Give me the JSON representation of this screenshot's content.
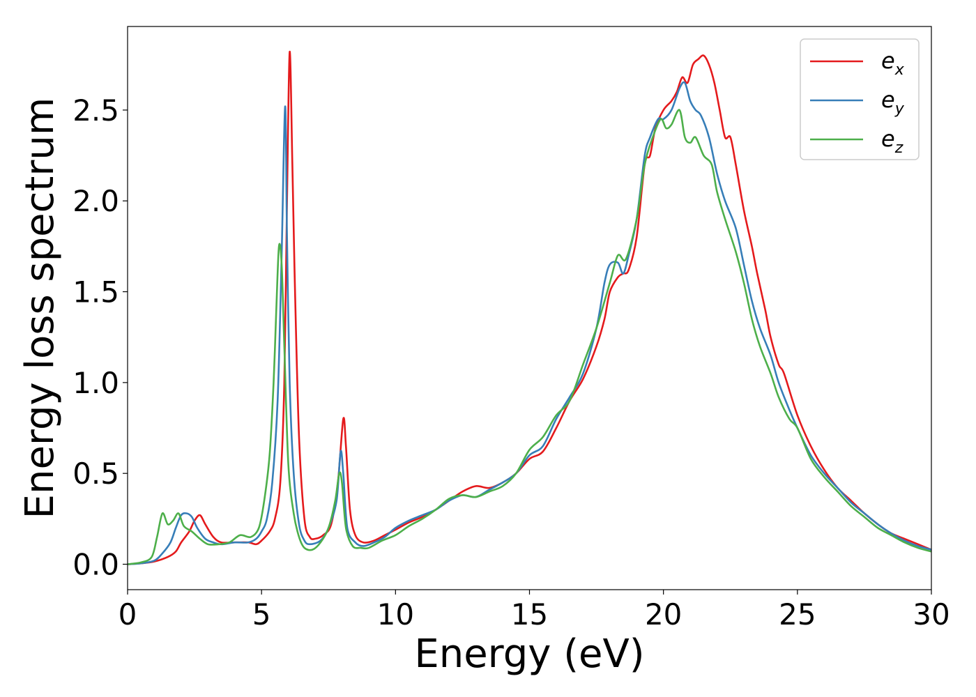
{
  "chart_data": {
    "type": "line",
    "title": "",
    "xlabel": "Energy (eV)",
    "ylabel": "Energy loss spectrum",
    "xlim": [
      0,
      30
    ],
    "ylim": [
      -0.14,
      2.96
    ],
    "xticks": [
      0,
      5,
      10,
      15,
      20,
      25,
      30
    ],
    "yticks": [
      0.0,
      0.5,
      1.0,
      1.5,
      2.0,
      2.5
    ],
    "xtick_labels": [
      "0",
      "5",
      "10",
      "15",
      "20",
      "25",
      "30"
    ],
    "ytick_labels": [
      "0.0",
      "0.5",
      "1.0",
      "1.5",
      "2.0",
      "2.5"
    ],
    "grid": false,
    "legend_position": "top-right",
    "series": [
      {
        "name": "e_x",
        "legend_base": "e",
        "legend_sub": "x",
        "color": "#e41a1c",
        "x": [
          0,
          0.5,
          1.0,
          1.5,
          1.8,
          2.0,
          2.3,
          2.5,
          2.7,
          2.9,
          3.2,
          3.5,
          4.0,
          4.5,
          4.8,
          5.0,
          5.3,
          5.5,
          5.7,
          5.85,
          5.95,
          6.05,
          6.15,
          6.25,
          6.4,
          6.6,
          6.8,
          7.0,
          7.3,
          7.6,
          7.85,
          8.05,
          8.15,
          8.3,
          8.5,
          8.8,
          9.2,
          9.6,
          10.0,
          10.5,
          11.0,
          11.5,
          12.0,
          12.5,
          13.0,
          13.5,
          14.0,
          14.5,
          15.0,
          15.5,
          16.0,
          16.5,
          17.0,
          17.5,
          17.8,
          18.0,
          18.3,
          18.5,
          18.7,
          19.0,
          19.3,
          19.5,
          19.7,
          20.0,
          20.3,
          20.5,
          20.7,
          20.9,
          21.1,
          21.3,
          21.5,
          21.7,
          21.9,
          22.1,
          22.3,
          22.5,
          22.7,
          23.0,
          23.3,
          23.5,
          23.8,
          24.0,
          24.3,
          24.5,
          25.0,
          25.5,
          26.0,
          26.5,
          27.0,
          27.5,
          28.0,
          28.5,
          29.0,
          29.5,
          30.0
        ],
        "values": [
          0.0,
          0.005,
          0.015,
          0.04,
          0.07,
          0.12,
          0.18,
          0.24,
          0.27,
          0.22,
          0.15,
          0.12,
          0.12,
          0.12,
          0.11,
          0.13,
          0.18,
          0.25,
          0.45,
          1.0,
          2.0,
          2.82,
          2.2,
          1.5,
          0.7,
          0.25,
          0.15,
          0.14,
          0.16,
          0.22,
          0.45,
          0.8,
          0.65,
          0.3,
          0.16,
          0.12,
          0.13,
          0.16,
          0.19,
          0.23,
          0.26,
          0.3,
          0.35,
          0.4,
          0.43,
          0.42,
          0.45,
          0.5,
          0.58,
          0.62,
          0.75,
          0.9,
          1.02,
          1.2,
          1.35,
          1.5,
          1.58,
          1.6,
          1.62,
          1.8,
          2.2,
          2.25,
          2.4,
          2.5,
          2.55,
          2.6,
          2.68,
          2.65,
          2.75,
          2.78,
          2.8,
          2.75,
          2.65,
          2.5,
          2.35,
          2.35,
          2.2,
          1.95,
          1.75,
          1.6,
          1.4,
          1.25,
          1.1,
          1.05,
          0.82,
          0.65,
          0.52,
          0.42,
          0.35,
          0.28,
          0.22,
          0.17,
          0.14,
          0.11,
          0.08
        ]
      },
      {
        "name": "e_y",
        "legend_base": "e",
        "legend_sub": "y",
        "color": "#377eb8",
        "x": [
          0,
          0.5,
          1.0,
          1.3,
          1.6,
          1.8,
          2.0,
          2.2,
          2.4,
          2.6,
          2.9,
          3.2,
          3.5,
          4.0,
          4.5,
          4.8,
          5.0,
          5.2,
          5.4,
          5.6,
          5.75,
          5.88,
          5.95,
          6.05,
          6.2,
          6.4,
          6.6,
          6.8,
          7.2,
          7.5,
          7.8,
          7.95,
          8.05,
          8.2,
          8.5,
          8.8,
          9.2,
          9.6,
          10.0,
          10.5,
          11.0,
          11.5,
          12.0,
          12.5,
          13.0,
          13.5,
          14.0,
          14.5,
          15.0,
          15.5,
          16.0,
          16.5,
          17.0,
          17.5,
          17.8,
          18.0,
          18.3,
          18.5,
          18.7,
          19.0,
          19.3,
          19.5,
          19.8,
          20.0,
          20.3,
          20.6,
          20.8,
          21.0,
          21.2,
          21.4,
          21.7,
          22.0,
          22.3,
          22.7,
          23.0,
          23.3,
          23.6,
          24.0,
          24.3,
          24.7,
          25.0,
          25.5,
          26.0,
          26.5,
          27.0,
          27.5,
          28.0,
          28.5,
          29.0,
          29.5,
          30.0
        ],
        "values": [
          0.0,
          0.005,
          0.02,
          0.06,
          0.12,
          0.2,
          0.27,
          0.28,
          0.26,
          0.2,
          0.14,
          0.12,
          0.11,
          0.12,
          0.12,
          0.14,
          0.18,
          0.25,
          0.45,
          0.9,
          1.7,
          2.52,
          1.8,
          1.0,
          0.5,
          0.22,
          0.13,
          0.11,
          0.13,
          0.2,
          0.35,
          0.62,
          0.5,
          0.2,
          0.12,
          0.1,
          0.12,
          0.15,
          0.2,
          0.24,
          0.27,
          0.3,
          0.35,
          0.38,
          0.37,
          0.41,
          0.45,
          0.5,
          0.6,
          0.65,
          0.8,
          0.92,
          1.05,
          1.3,
          1.55,
          1.65,
          1.66,
          1.6,
          1.7,
          1.9,
          2.25,
          2.35,
          2.45,
          2.45,
          2.5,
          2.62,
          2.65,
          2.55,
          2.5,
          2.47,
          2.35,
          2.15,
          2.0,
          1.85,
          1.65,
          1.45,
          1.3,
          1.15,
          1.0,
          0.85,
          0.75,
          0.6,
          0.5,
          0.42,
          0.34,
          0.28,
          0.22,
          0.17,
          0.13,
          0.1,
          0.08
        ]
      },
      {
        "name": "e_z",
        "legend_base": "e",
        "legend_sub": "z",
        "color": "#4daf4a",
        "x": [
          0,
          0.5,
          0.9,
          1.1,
          1.3,
          1.5,
          1.7,
          1.9,
          2.1,
          2.4,
          2.7,
          3.0,
          3.4,
          3.8,
          4.2,
          4.6,
          4.9,
          5.1,
          5.3,
          5.45,
          5.55,
          5.65,
          5.75,
          5.85,
          6.0,
          6.2,
          6.4,
          6.6,
          6.9,
          7.2,
          7.5,
          7.75,
          7.9,
          8.0,
          8.15,
          8.4,
          8.7,
          9.0,
          9.5,
          10.0,
          10.5,
          11.0,
          11.5,
          12.0,
          12.5,
          13.0,
          13.5,
          14.0,
          14.5,
          15.0,
          15.5,
          16.0,
          16.5,
          17.0,
          17.5,
          18.0,
          18.3,
          18.6,
          19.0,
          19.3,
          19.6,
          19.9,
          20.1,
          20.3,
          20.6,
          20.8,
          21.0,
          21.2,
          21.5,
          21.8,
          22.0,
          22.3,
          22.7,
          23.0,
          23.3,
          23.6,
          24.0,
          24.3,
          24.7,
          25.0,
          25.5,
          26.0,
          26.5,
          27.0,
          27.5,
          28.0,
          28.5,
          29.0,
          29.5,
          30.0
        ],
        "values": [
          0.0,
          0.01,
          0.04,
          0.15,
          0.28,
          0.22,
          0.24,
          0.28,
          0.21,
          0.18,
          0.14,
          0.11,
          0.11,
          0.12,
          0.16,
          0.15,
          0.2,
          0.35,
          0.6,
          1.0,
          1.4,
          1.75,
          1.65,
          1.2,
          0.55,
          0.28,
          0.15,
          0.09,
          0.08,
          0.12,
          0.2,
          0.35,
          0.5,
          0.45,
          0.2,
          0.1,
          0.09,
          0.09,
          0.13,
          0.16,
          0.21,
          0.25,
          0.3,
          0.36,
          0.38,
          0.37,
          0.4,
          0.43,
          0.5,
          0.63,
          0.7,
          0.82,
          0.9,
          1.1,
          1.3,
          1.55,
          1.7,
          1.68,
          1.9,
          2.2,
          2.35,
          2.45,
          2.4,
          2.42,
          2.5,
          2.35,
          2.32,
          2.35,
          2.25,
          2.2,
          2.05,
          1.9,
          1.72,
          1.55,
          1.35,
          1.2,
          1.05,
          0.92,
          0.8,
          0.75,
          0.58,
          0.48,
          0.4,
          0.32,
          0.26,
          0.2,
          0.16,
          0.12,
          0.09,
          0.07
        ]
      }
    ]
  }
}
